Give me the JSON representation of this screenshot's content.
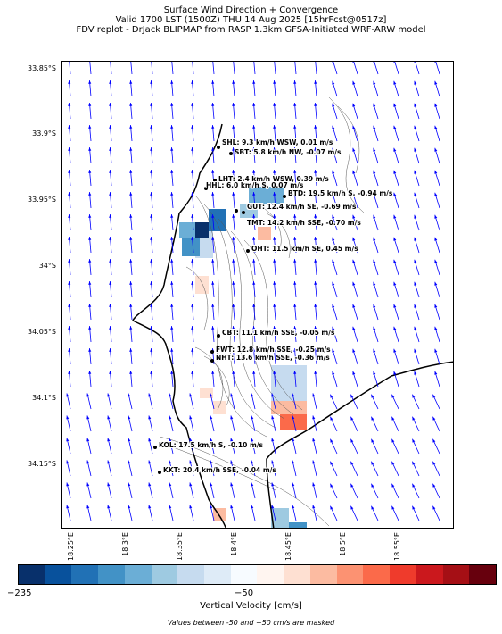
{
  "title": {
    "line1": "Surface Wind Direction + Convergence",
    "line2": "Valid 1700 LST (1500Z) THU 14 Aug 2025 [15hrFcst@0517z]",
    "line3": "FDV replot - DrJack BLIPMAP from RASP 1.3km GFSA-Initiated WRF-ARW model"
  },
  "lat_labels": [
    "33.85°S",
    "33.9°S",
    "33.95°S",
    "34°S",
    "34.05°S",
    "34.1°S",
    "34.15°S"
  ],
  "lon_labels": [
    "18.25°E",
    "18.3°E",
    "18.35°E",
    "18.4°E",
    "18.45°E",
    "18.5°E",
    "18.55°E"
  ],
  "stations": [
    {
      "id": "SHL",
      "text": "SHL: 9.3 km/h WSW, 0.01 m/s"
    },
    {
      "id": "SBT",
      "text": "SBT: 5.8 km/h NW, -0.07 m/s"
    },
    {
      "id": "LHT",
      "text": "LHT: 2.4 km/h WSW, 0.39 m/s"
    },
    {
      "id": "HHL",
      "text": "HHL: 6.0 km/h S, 0.07 m/s"
    },
    {
      "id": "BTD",
      "text": "BTD: 19.5 km/h S, -0.94 m/s"
    },
    {
      "id": "GUT",
      "text": "GUT: 12.4 km/h SE, -0.69 m/s"
    },
    {
      "id": "TMT",
      "text": "TMT: 14.2 km/h SSE, -0.70 m/s"
    },
    {
      "id": "OHT",
      "text": "OHT: 11.5 km/h SE, 0.45 m/s"
    },
    {
      "id": "CBT",
      "text": "CBT: 11.1 km/h SSE, -0.05 m/s"
    },
    {
      "id": "FWT",
      "text": "FWT: 12.8 km/h SSE, -0.25 m/s"
    },
    {
      "id": "NHT",
      "text": "NHT: 13.6 km/h SSE, -0.36 m/s"
    },
    {
      "id": "KOL",
      "text": "KOL: 17.5 km/h S, -0.10 m/s"
    },
    {
      "id": "KKT",
      "text": "KKT: 20.4 km/h SSE, -0.04 m/s"
    }
  ],
  "colorbar": {
    "min_label": "−235",
    "mid_label": "−50",
    "title": "Vertical Velocity [cm/s]",
    "note": "Values between -50 and +50 cm/s are masked",
    "colors": [
      "#08306b",
      "#08519c",
      "#2171b5",
      "#4292c6",
      "#6baed6",
      "#9ecae1",
      "#c6dbef",
      "#deebf7",
      "#f7fbff",
      "#fff5f0",
      "#fee0d2",
      "#fcbba1",
      "#fc9272",
      "#fb6a4a",
      "#ef3b2c",
      "#cb181d",
      "#a50f15",
      "#67000d"
    ]
  },
  "colors": {
    "wind_arrow": "#0000ff",
    "coastline": "#000000",
    "contour": "#555555"
  }
}
